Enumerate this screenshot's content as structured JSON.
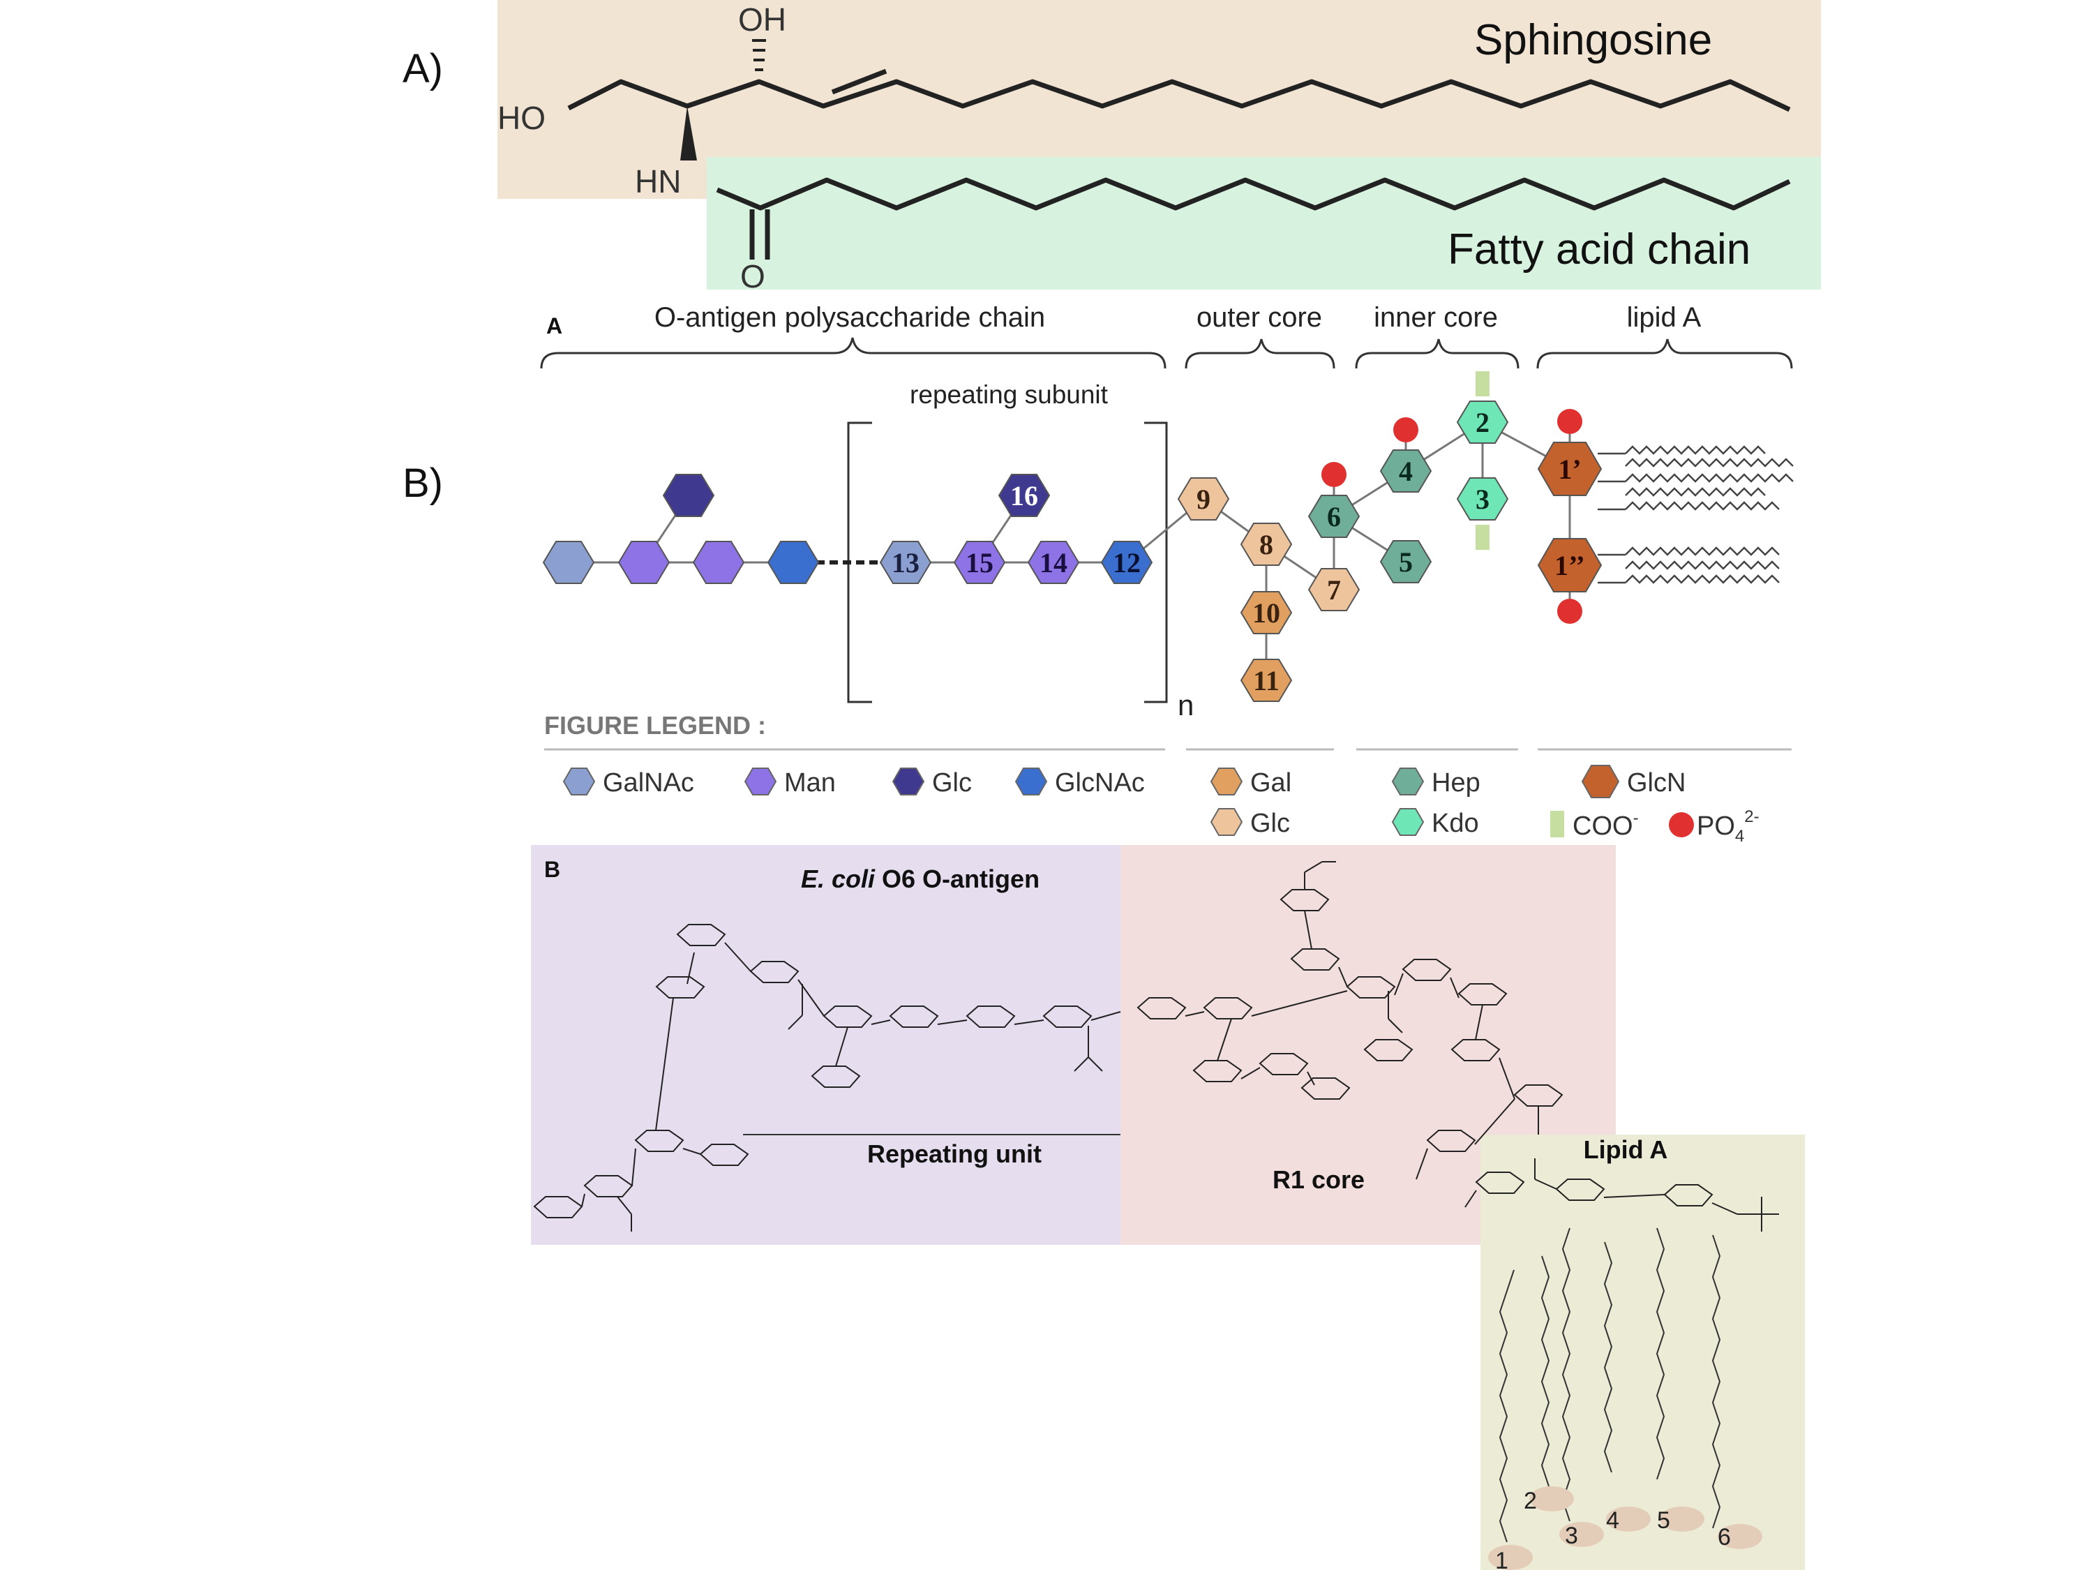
{
  "panels": {
    "a_label": "A)",
    "b_label": "B)"
  },
  "ceramide": {
    "sphingosine_label": "Sphingosine",
    "fatty_acid_label": "Fatty acid chain",
    "atoms": {
      "oh": "OH",
      "ho": "HO",
      "hn": "HN",
      "o": "O"
    },
    "colors": {
      "sphingosine_bg": "#f1e4d3",
      "fatty_acid_bg": "#d7f2df"
    }
  },
  "lps": {
    "panel_tag": "A",
    "regions": {
      "o_antigen": "O-antigen polysaccharide chain",
      "outer_core": "outer core",
      "inner_core": "inner core",
      "lipid_a": "lipid A"
    },
    "repeating_subunit": "repeating subunit",
    "repeat_n": "n",
    "residues": {
      "r1p": "1’",
      "r1pp": "1’’",
      "r2": "2",
      "r3": "3",
      "r4": "4",
      "r5": "5",
      "r6": "6",
      "r7": "7",
      "r8": "8",
      "r9": "9",
      "r10": "10",
      "r11": "11",
      "r12": "12",
      "r13": "13",
      "r14": "14",
      "r15": "15",
      "r16": "16"
    },
    "legend": {
      "title": "FIGURE LEGEND :",
      "galnac": "GalNAc",
      "man": "Man",
      "glc_dark": "Glc",
      "glcnac": "GlcNAc",
      "gal": "Gal",
      "glc_light": "Glc",
      "hep": "Hep",
      "kdo": "Kdo",
      "glcn": "GlcN",
      "coo": "COO",
      "coo_sup": "-",
      "po4": "PO",
      "po4_sub": "4",
      "po4_sup": "2-"
    },
    "colors": {
      "galnac": "#8b9fd1",
      "man": "#8d73e6",
      "glc_dark": "#3f3a90",
      "glcnac": "#3b6fcf",
      "gal": "#e2a060",
      "glc_light": "#eec49c",
      "hep": "#6fae98",
      "kdo": "#6fe6b6",
      "glcn": "#c4622e",
      "coo": "#c6dea0",
      "po4": "#e03030"
    }
  },
  "structure": {
    "panel_tag": "B",
    "o_antigen_title_italic": "E. coli",
    "o_antigen_title_rest": " O6 O-antigen",
    "repeating_unit": "Repeating unit",
    "r1_core": "R1 core",
    "lipid_a": "Lipid A",
    "chain_numbers": [
      "1",
      "2",
      "3",
      "4",
      "5",
      "6"
    ],
    "colors": {
      "o_antigen_bg": "#e6ddef",
      "core_bg": "#f3dede",
      "lipid_bg": "#ecebd6"
    }
  }
}
